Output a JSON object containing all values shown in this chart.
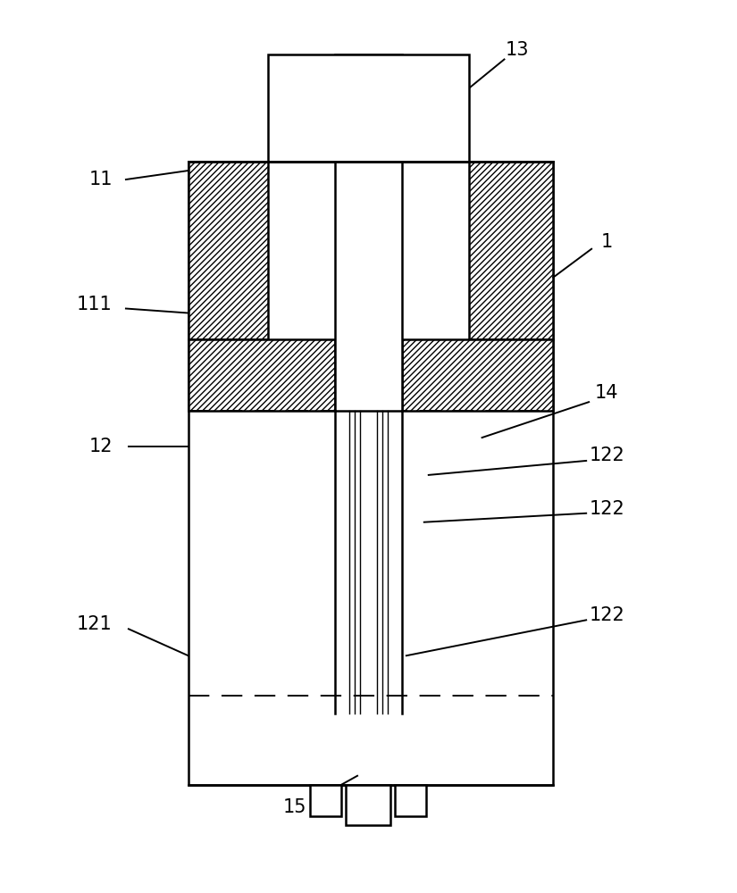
{
  "bg_color": "#ffffff",
  "line_color": "#000000",
  "fig_width": 8.25,
  "fig_height": 10.0,
  "dpi": 100,
  "lw_main": 1.8,
  "lw_thin": 1.2,
  "label_fs": 15
}
